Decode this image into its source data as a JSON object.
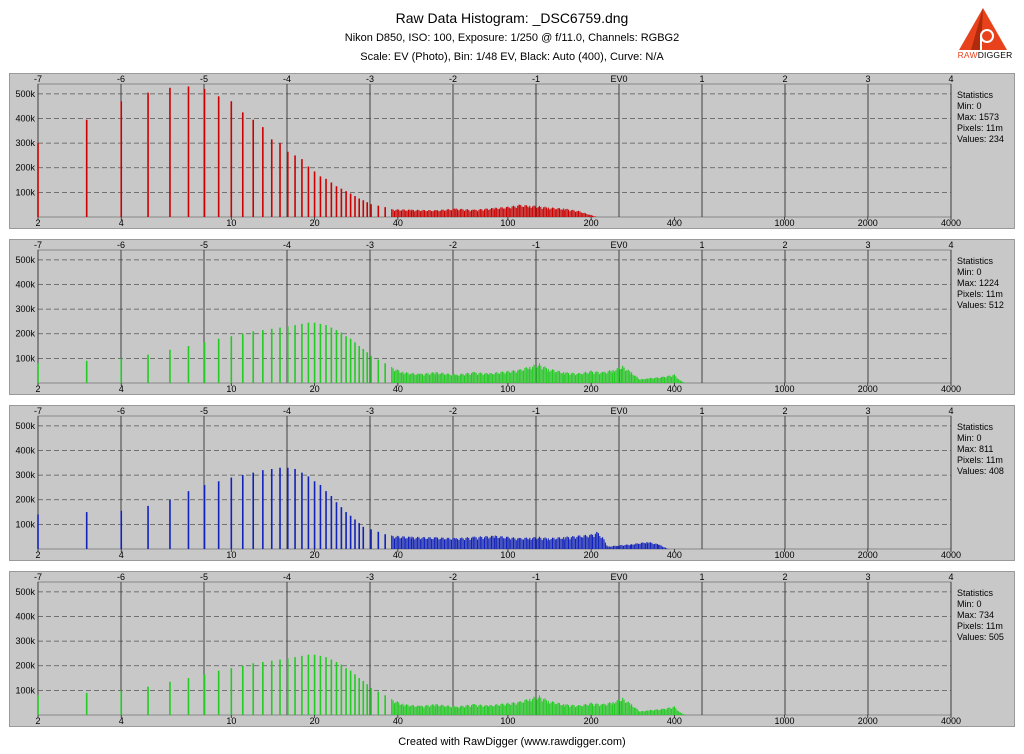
{
  "title": "Raw Data Histogram: _DSC6759.dng",
  "subtitle_camera": "Nikon D850, ISO: 100, Exposure: 1/250 @ f/11.0, Channels: RGBG2",
  "subtitle_scale": "Scale: EV (Photo), Bin: 1/48 EV, Black: Auto (400), Curve: N/A",
  "footer": "Created with RawDigger (www.rawdigger.com)",
  "logo": {
    "text_raw": "RAW",
    "text_digger": "DIGGER",
    "letter": "p"
  },
  "chart_data": [
    {
      "type": "bar",
      "channel": "R",
      "color": "#cc0000",
      "ev_ticks": [
        "-7",
        "-6",
        "-5",
        "-4",
        "-3",
        "-2",
        "-1",
        "EV0",
        "1",
        "2",
        "3",
        "4"
      ],
      "raw_ticks": [
        "2",
        "4",
        "10",
        "20",
        "40",
        "100",
        "200",
        "400",
        "1000",
        "2000",
        "4000"
      ],
      "y_ticks": [
        "500k",
        "400k",
        "300k",
        "200k",
        "100k"
      ],
      "ylim": [
        0,
        540000
      ],
      "stats": {
        "title": "Statistics",
        "min": "Min: 0",
        "max": "Max: 1573",
        "pixels": "Pixels: 11m",
        "values": "Values: 234"
      },
      "discrete": [
        [
          2,
          300000
        ],
        [
          3,
          395000
        ],
        [
          4,
          470000
        ],
        [
          5,
          505000
        ],
        [
          6,
          525000
        ],
        [
          7,
          530000
        ],
        [
          8,
          520000
        ],
        [
          9,
          490000
        ],
        [
          10,
          470000
        ],
        [
          11,
          425000
        ],
        [
          12,
          395000
        ],
        [
          13,
          365000
        ],
        [
          14,
          315000
        ],
        [
          15,
          300000
        ],
        [
          16,
          265000
        ],
        [
          17,
          250000
        ],
        [
          18,
          235000
        ],
        [
          19,
          205000
        ],
        [
          20,
          185000
        ],
        [
          21,
          165000
        ],
        [
          22,
          155000
        ],
        [
          23,
          140000
        ],
        [
          24,
          125000
        ],
        [
          25,
          115000
        ],
        [
          26,
          105000
        ],
        [
          27,
          95000
        ],
        [
          28,
          85000
        ],
        [
          29,
          75000
        ],
        [
          30,
          68000
        ],
        [
          31,
          60000
        ],
        [
          32,
          52000
        ],
        [
          34,
          46000
        ],
        [
          36,
          40000
        ]
      ],
      "envelope": [
        [
          38,
          32000
        ],
        [
          45,
          30000
        ],
        [
          55,
          28000
        ],
        [
          65,
          35000
        ],
        [
          75,
          30000
        ],
        [
          90,
          38000
        ],
        [
          100,
          42000
        ],
        [
          110,
          50000
        ],
        [
          120,
          48000
        ],
        [
          130,
          45000
        ],
        [
          140,
          40000
        ],
        [
          160,
          35000
        ],
        [
          180,
          25000
        ],
        [
          200,
          8000
        ],
        [
          210,
          0
        ]
      ]
    },
    {
      "type": "bar",
      "channel": "G",
      "color": "#22cc22",
      "ev_ticks": [
        "-7",
        "-6",
        "-5",
        "-4",
        "-3",
        "-2",
        "-1",
        "EV0",
        "1",
        "2",
        "3",
        "4"
      ],
      "raw_ticks": [
        "2",
        "4",
        "10",
        "20",
        "40",
        "100",
        "200",
        "400",
        "1000",
        "2000",
        "4000"
      ],
      "y_ticks": [
        "500k",
        "400k",
        "300k",
        "200k",
        "100k"
      ],
      "ylim": [
        0,
        540000
      ],
      "stats": {
        "title": "Statistics",
        "min": "Min: 0",
        "max": "Max: 1224",
        "pixels": "Pixels: 11m",
        "values": "Values: 512"
      },
      "discrete": [
        [
          2,
          80000
        ],
        [
          3,
          90000
        ],
        [
          4,
          100000
        ],
        [
          5,
          115000
        ],
        [
          6,
          135000
        ],
        [
          7,
          150000
        ],
        [
          8,
          165000
        ],
        [
          9,
          180000
        ],
        [
          10,
          190000
        ],
        [
          11,
          200000
        ],
        [
          12,
          210000
        ],
        [
          13,
          215000
        ],
        [
          14,
          220000
        ],
        [
          15,
          225000
        ],
        [
          16,
          230000
        ],
        [
          17,
          235000
        ],
        [
          18,
          240000
        ],
        [
          19,
          245000
        ],
        [
          20,
          245000
        ],
        [
          21,
          240000
        ],
        [
          22,
          235000
        ],
        [
          23,
          225000
        ],
        [
          24,
          215000
        ],
        [
          25,
          205000
        ],
        [
          26,
          190000
        ],
        [
          27,
          180000
        ],
        [
          28,
          165000
        ],
        [
          29,
          150000
        ],
        [
          30,
          138000
        ],
        [
          31,
          125000
        ],
        [
          32,
          110000
        ],
        [
          34,
          95000
        ],
        [
          36,
          80000
        ]
      ],
      "envelope": [
        [
          38,
          65000
        ],
        [
          42,
          45000
        ],
        [
          48,
          38000
        ],
        [
          55,
          45000
        ],
        [
          65,
          35000
        ],
        [
          75,
          45000
        ],
        [
          85,
          40000
        ],
        [
          100,
          50000
        ],
        [
          110,
          55000
        ],
        [
          120,
          70000
        ],
        [
          130,
          80000
        ],
        [
          140,
          60000
        ],
        [
          160,
          45000
        ],
        [
          180,
          40000
        ],
        [
          200,
          50000
        ],
        [
          220,
          45000
        ],
        [
          240,
          55000
        ],
        [
          260,
          70000
        ],
        [
          280,
          45000
        ],
        [
          300,
          15000
        ],
        [
          320,
          20000
        ],
        [
          360,
          25000
        ],
        [
          400,
          35000
        ],
        [
          420,
          10000
        ],
        [
          440,
          0
        ]
      ]
    },
    {
      "type": "bar",
      "channel": "B",
      "color": "#1122bb",
      "ev_ticks": [
        "-7",
        "-6",
        "-5",
        "-4",
        "-3",
        "-2",
        "-1",
        "EV0",
        "1",
        "2",
        "3",
        "4"
      ],
      "raw_ticks": [
        "2",
        "4",
        "10",
        "20",
        "40",
        "100",
        "200",
        "400",
        "1000",
        "2000",
        "4000"
      ],
      "y_ticks": [
        "500k",
        "400k",
        "300k",
        "200k",
        "100k"
      ],
      "ylim": [
        0,
        540000
      ],
      "stats": {
        "title": "Statistics",
        "min": "Min: 0",
        "max": "Max: 811",
        "pixels": "Pixels: 11m",
        "values": "Values: 408"
      },
      "discrete": [
        [
          2,
          140000
        ],
        [
          3,
          150000
        ],
        [
          4,
          155000
        ],
        [
          5,
          175000
        ],
        [
          6,
          200000
        ],
        [
          7,
          235000
        ],
        [
          8,
          260000
        ],
        [
          9,
          275000
        ],
        [
          10,
          290000
        ],
        [
          11,
          300000
        ],
        [
          12,
          310000
        ],
        [
          13,
          320000
        ],
        [
          14,
          325000
        ],
        [
          15,
          330000
        ],
        [
          16,
          330000
        ],
        [
          17,
          325000
        ],
        [
          18,
          310000
        ],
        [
          19,
          295000
        ],
        [
          20,
          275000
        ],
        [
          21,
          260000
        ],
        [
          22,
          235000
        ],
        [
          23,
          215000
        ],
        [
          24,
          190000
        ],
        [
          25,
          170000
        ],
        [
          26,
          150000
        ],
        [
          27,
          135000
        ],
        [
          28,
          120000
        ],
        [
          29,
          105000
        ],
        [
          30,
          90000
        ],
        [
          32,
          80000
        ],
        [
          34,
          70000
        ],
        [
          36,
          60000
        ]
      ],
      "envelope": [
        [
          38,
          55000
        ],
        [
          45,
          50000
        ],
        [
          55,
          48000
        ],
        [
          65,
          45000
        ],
        [
          75,
          50000
        ],
        [
          90,
          55000
        ],
        [
          100,
          50000
        ],
        [
          110,
          45000
        ],
        [
          120,
          48000
        ],
        [
          130,
          50000
        ],
        [
          140,
          45000
        ],
        [
          160,
          50000
        ],
        [
          180,
          55000
        ],
        [
          200,
          60000
        ],
        [
          210,
          70000
        ],
        [
          220,
          50000
        ],
        [
          230,
          10000
        ],
        [
          250,
          15000
        ],
        [
          280,
          20000
        ],
        [
          320,
          30000
        ],
        [
          350,
          20000
        ],
        [
          380,
          0
        ]
      ]
    },
    {
      "type": "bar",
      "channel": "G2",
      "color": "#22cc22",
      "ev_ticks": [
        "-7",
        "-6",
        "-5",
        "-4",
        "-3",
        "-2",
        "-1",
        "EV0",
        "1",
        "2",
        "3",
        "4"
      ],
      "raw_ticks": [
        "2",
        "4",
        "10",
        "20",
        "40",
        "100",
        "200",
        "400",
        "1000",
        "2000",
        "4000"
      ],
      "y_ticks": [
        "500k",
        "400k",
        "300k",
        "200k",
        "100k"
      ],
      "ylim": [
        0,
        540000
      ],
      "stats": {
        "title": "Statistics",
        "min": "Min: 0",
        "max": "Max: 734",
        "pixels": "Pixels: 11m",
        "values": "Values: 505"
      },
      "discrete": [
        [
          2,
          80000
        ],
        [
          3,
          90000
        ],
        [
          4,
          100000
        ],
        [
          5,
          115000
        ],
        [
          6,
          135000
        ],
        [
          7,
          150000
        ],
        [
          8,
          165000
        ],
        [
          9,
          180000
        ],
        [
          10,
          190000
        ],
        [
          11,
          200000
        ],
        [
          12,
          210000
        ],
        [
          13,
          215000
        ],
        [
          14,
          220000
        ],
        [
          15,
          225000
        ],
        [
          16,
          230000
        ],
        [
          17,
          235000
        ],
        [
          18,
          240000
        ],
        [
          19,
          245000
        ],
        [
          20,
          245000
        ],
        [
          21,
          240000
        ],
        [
          22,
          235000
        ],
        [
          23,
          225000
        ],
        [
          24,
          215000
        ],
        [
          25,
          205000
        ],
        [
          26,
          190000
        ],
        [
          27,
          180000
        ],
        [
          28,
          165000
        ],
        [
          29,
          150000
        ],
        [
          30,
          138000
        ],
        [
          31,
          125000
        ],
        [
          32,
          110000
        ],
        [
          34,
          95000
        ],
        [
          36,
          80000
        ]
      ],
      "envelope": [
        [
          38,
          65000
        ],
        [
          42,
          45000
        ],
        [
          48,
          38000
        ],
        [
          55,
          45000
        ],
        [
          65,
          35000
        ],
        [
          75,
          45000
        ],
        [
          85,
          40000
        ],
        [
          100,
          50000
        ],
        [
          110,
          55000
        ],
        [
          120,
          70000
        ],
        [
          130,
          80000
        ],
        [
          140,
          60000
        ],
        [
          160,
          45000
        ],
        [
          180,
          40000
        ],
        [
          200,
          50000
        ],
        [
          220,
          45000
        ],
        [
          240,
          55000
        ],
        [
          260,
          70000
        ],
        [
          280,
          45000
        ],
        [
          300,
          15000
        ],
        [
          320,
          20000
        ],
        [
          360,
          25000
        ],
        [
          400,
          35000
        ],
        [
          420,
          10000
        ],
        [
          440,
          0
        ]
      ]
    }
  ]
}
